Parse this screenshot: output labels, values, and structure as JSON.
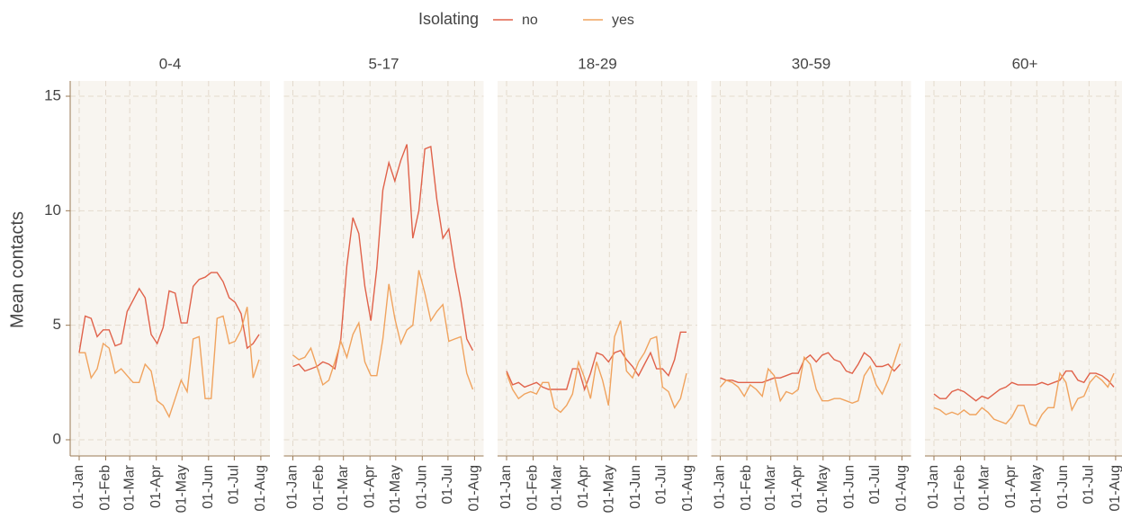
{
  "chart_data": {
    "type": "line",
    "ylabel": "Mean contacts",
    "legend_title": "Isolating",
    "x": [
      "01-Jan",
      "08-Jan",
      "15-Jan",
      "22-Jan",
      "29-Jan",
      "05-Feb",
      "12-Feb",
      "19-Feb",
      "26-Feb",
      "05-Mar",
      "12-Mar",
      "19-Mar",
      "26-Mar",
      "02-Apr",
      "09-Apr",
      "16-Apr",
      "23-Apr",
      "30-Apr",
      "07-May",
      "14-May",
      "21-May",
      "28-May",
      "04-Jun",
      "11-Jun",
      "18-Jun",
      "25-Jun",
      "02-Jul",
      "09-Jul",
      "16-Jul",
      "23-Jul",
      "30-Jul"
    ],
    "xlim": [
      "01-Jan",
      "30-Jul"
    ],
    "xticks": [
      "01-Jan",
      "01-Feb",
      "01-Mar",
      "01-Apr",
      "01-May",
      "01-Jun",
      "01-Jul",
      "01-Aug"
    ],
    "ylim": [
      0,
      15
    ],
    "yticks": [
      0,
      5,
      10,
      15
    ],
    "grid": true,
    "panels": [
      {
        "title": "0-4",
        "series": [
          {
            "name": "no",
            "color": "#e0624a",
            "values": [
              3.8,
              5.4,
              5.3,
              4.5,
              4.8,
              4.8,
              4.1,
              4.2,
              5.6,
              6.1,
              6.6,
              6.2,
              4.6,
              4.2,
              4.9,
              6.5,
              6.4,
              5.1,
              5.1,
              6.7,
              7.0,
              7.1,
              7.3,
              7.3,
              6.9,
              6.2,
              6.0,
              5.5,
              4.0,
              4.2,
              4.6
            ]
          },
          {
            "name": "yes",
            "color": "#f0a35e",
            "values": [
              3.8,
              3.8,
              2.7,
              3.1,
              4.2,
              4.0,
              2.9,
              3.1,
              2.8,
              2.5,
              2.5,
              3.3,
              3.0,
              1.7,
              1.5,
              1.0,
              1.8,
              2.6,
              2.1,
              4.4,
              4.5,
              1.8,
              1.8,
              5.3,
              5.4,
              4.2,
              4.3,
              4.8,
              5.8,
              2.7,
              3.5
            ]
          }
        ]
      },
      {
        "title": "5-17",
        "series": [
          {
            "name": "no",
            "color": "#e0624a",
            "values": [
              3.2,
              3.3,
              3.0,
              3.1,
              3.2,
              3.4,
              3.3,
              3.1,
              4.4,
              7.6,
              9.7,
              9.0,
              6.7,
              5.2,
              7.5,
              10.9,
              12.1,
              11.3,
              12.2,
              12.9,
              8.8,
              10.0,
              12.7,
              12.8,
              10.5,
              8.8,
              9.2,
              7.5,
              6.1,
              4.4,
              3.9
            ]
          },
          {
            "name": "yes",
            "color": "#f0a35e",
            "values": [
              3.7,
              3.5,
              3.6,
              4.0,
              3.2,
              2.4,
              2.6,
              3.4,
              4.3,
              3.6,
              4.6,
              5.1,
              3.4,
              2.8,
              2.8,
              4.4,
              6.8,
              5.3,
              4.2,
              4.8,
              5.0,
              7.4,
              6.4,
              5.2,
              5.6,
              5.9,
              4.3,
              4.4,
              4.5,
              2.9,
              2.2
            ]
          }
        ]
      },
      {
        "title": "18-29",
        "series": [
          {
            "name": "no",
            "color": "#e0624a",
            "values": [
              3.0,
              2.4,
              2.5,
              2.3,
              2.4,
              2.5,
              2.3,
              2.2,
              2.2,
              2.2,
              2.2,
              3.1,
              3.1,
              2.2,
              2.9,
              3.8,
              3.7,
              3.4,
              3.8,
              3.9,
              3.5,
              3.2,
              2.8,
              3.3,
              3.8,
              3.1,
              3.1,
              2.8,
              3.5,
              4.7,
              4.7
            ]
          },
          {
            "name": "yes",
            "color": "#f0a35e",
            "values": [
              2.9,
              2.2,
              1.8,
              2.0,
              2.1,
              2.0,
              2.5,
              2.5,
              1.4,
              1.2,
              1.5,
              2.0,
              3.4,
              2.7,
              1.8,
              3.4,
              2.6,
              1.5,
              4.5,
              5.2,
              3.0,
              2.7,
              3.4,
              3.8,
              4.4,
              4.5,
              2.3,
              2.1,
              1.4,
              1.8,
              2.9
            ]
          }
        ]
      },
      {
        "title": "30-59",
        "series": [
          {
            "name": "no",
            "color": "#e0624a",
            "values": [
              2.7,
              2.6,
              2.6,
              2.5,
              2.5,
              2.5,
              2.5,
              2.5,
              2.6,
              2.7,
              2.7,
              2.8,
              2.9,
              2.9,
              3.5,
              3.7,
              3.4,
              3.7,
              3.8,
              3.5,
              3.4,
              3.0,
              2.9,
              3.3,
              3.8,
              3.6,
              3.2,
              3.2,
              3.3,
              3.0,
              3.3
            ]
          },
          {
            "name": "yes",
            "color": "#f0a35e",
            "values": [
              2.3,
              2.6,
              2.5,
              2.3,
              1.9,
              2.4,
              2.2,
              1.9,
              3.1,
              2.8,
              1.7,
              2.1,
              2.0,
              2.2,
              3.6,
              3.3,
              2.2,
              1.7,
              1.7,
              1.8,
              1.8,
              1.7,
              1.6,
              1.7,
              2.8,
              3.2,
              2.4,
              2.0,
              2.6,
              3.4,
              4.2
            ]
          }
        ]
      },
      {
        "title": "60+",
        "series": [
          {
            "name": "no",
            "color": "#e0624a",
            "values": [
              2.0,
              1.8,
              1.8,
              2.1,
              2.2,
              2.1,
              1.9,
              1.7,
              1.9,
              1.8,
              2.0,
              2.2,
              2.3,
              2.5,
              2.4,
              2.4,
              2.4,
              2.4,
              2.5,
              2.4,
              2.5,
              2.6,
              3.0,
              3.0,
              2.6,
              2.5,
              2.9,
              2.9,
              2.8,
              2.6,
              2.3
            ]
          },
          {
            "name": "yes",
            "color": "#f0a35e",
            "values": [
              1.4,
              1.3,
              1.1,
              1.2,
              1.1,
              1.3,
              1.1,
              1.1,
              1.4,
              1.2,
              0.9,
              0.8,
              0.7,
              1.0,
              1.5,
              1.5,
              0.7,
              0.6,
              1.1,
              1.4,
              1.4,
              2.9,
              2.5,
              1.3,
              1.8,
              1.9,
              2.5,
              2.8,
              2.6,
              2.3,
              2.9
            ]
          }
        ]
      }
    ]
  }
}
